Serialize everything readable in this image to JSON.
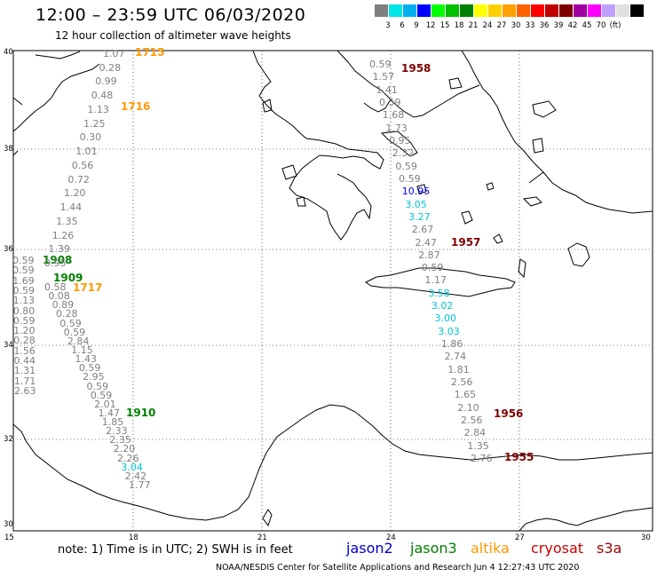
{
  "title": "12:00 – 23:59 UTC 06/03/2020",
  "subtitle": "12 hour collection of altimeter wave heights",
  "scale": {
    "colors": [
      "#7f7f7f",
      "#00e5e5",
      "#00b0f0",
      "#0000ff",
      "#00ff00",
      "#00c000",
      "#008000",
      "#ffff00",
      "#ffd000",
      "#ffa000",
      "#ff6000",
      "#ff0000",
      "#c00000",
      "#800000",
      "#a000a0",
      "#ff00ff",
      "#c0a0ff",
      "#e0e0e0",
      "#000000"
    ],
    "labels": [
      "3",
      "6",
      "9",
      "12",
      "15",
      "18",
      "21",
      "24",
      "27",
      "30",
      "33",
      "36",
      "39",
      "42",
      "45",
      "70",
      "(ft)"
    ]
  },
  "axes": {
    "lat_labels": [
      "40",
      "38",
      "36",
      "34",
      "32",
      "30"
    ],
    "lon_labels": [
      "15",
      "18",
      "21",
      "24",
      "27",
      "30"
    ]
  },
  "note": "note:  1) Time is in UTC;  2) SWH is in feet",
  "legend": [
    {
      "name": "jason2",
      "color": "#0000cc"
    },
    {
      "name": "jason3",
      "color": "#008000"
    },
    {
      "name": "altika",
      "color": "#ff9900"
    },
    {
      "name": "cryosat",
      "color": "#cc0000"
    },
    {
      "name": "s3a",
      "color": "#990000"
    }
  ],
  "footer": "NOAA/NESDIS Center for Satellite Applications and Research    Jun  4 12:27:43 UTC 2020",
  "times": [
    {
      "label": "1715",
      "color": "#ff9900"
    },
    {
      "label": "1716",
      "color": "#ff9900"
    },
    {
      "label": "1717",
      "color": "#ff9900"
    },
    {
      "label": "1908",
      "color": "#008000"
    },
    {
      "label": "1909",
      "color": "#008000"
    },
    {
      "label": "1910",
      "color": "#008000"
    },
    {
      "label": "1955",
      "color": "#800000"
    },
    {
      "label": "1956",
      "color": "#800000"
    },
    {
      "label": "1957",
      "color": "#800000"
    },
    {
      "label": "1958",
      "color": "#800000"
    }
  ],
  "track_altika_west": [
    "1.07",
    "0.28",
    "0.99",
    "0.48",
    "1.13",
    "1.25",
    "0.30",
    "1.01",
    "0.56",
    "0.72",
    "1.20",
    "1.44",
    "1.35",
    "1.26",
    "1.39",
    "0.95"
  ],
  "track_jason3_west": [
    "0.59",
    "0.59",
    "1.69",
    "0.59",
    "1.13",
    "0.80",
    "0.59",
    "1.20",
    "0.28",
    "1.56",
    "0.44",
    "1.31",
    "1.71",
    "2.63"
  ],
  "track_jason3_south": [
    "0.58",
    "0.08",
    "0.89",
    "0.28",
    "0.59",
    "0.59",
    "2.84",
    "1.15",
    "1.43",
    "0.59",
    "2.95",
    "0.59",
    "0.59",
    "2.01",
    "1.47",
    "1.85",
    "2.33",
    "2.35",
    "2.20",
    "2.26",
    "3.04",
    "2.42",
    "1.77"
  ],
  "track_s3a_east": [
    "0.59",
    "1.57",
    "1.41",
    "0.59",
    "1.68",
    "1.73",
    "0.95",
    "2.32",
    "0.59",
    "0.59",
    "10.95",
    "3.05",
    "3.27",
    "2.67",
    "2.47",
    "2.87",
    "0.59",
    "1.17",
    "3.58",
    "3.02",
    "3.00",
    "3.03",
    "1.86",
    "2.74",
    "1.81",
    "2.56",
    "1.65",
    "2.10",
    "2.56",
    "2.84",
    "1.35",
    "2.76"
  ]
}
